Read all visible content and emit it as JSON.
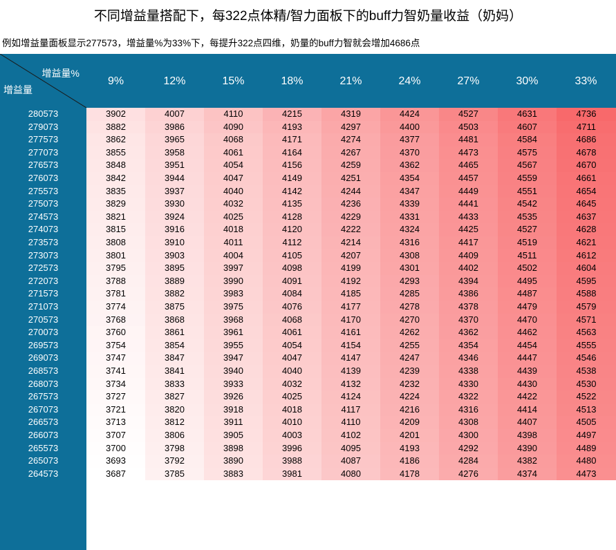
{
  "title": "不同增益量搭配下，每322点体精/智力面板下的buff力智奶量收益（奶妈）",
  "subtitle": "例如增益量面板显示277573，增益量%为33%下，每提升322点四维，奶量的buff力智就会增加4686点",
  "colors": {
    "header": "#0e6f99",
    "low": "#ffffff",
    "high": "#f8696b"
  },
  "chart_data": {
    "type": "table",
    "corner_top_label": "增益量%",
    "corner_bottom_label": "增益量",
    "columns": [
      "9%",
      "12%",
      "15%",
      "18%",
      "21%",
      "24%",
      "27%",
      "30%",
      "33%"
    ],
    "rows": [
      {
        "label": "280573",
        "values": [
          3902,
          4007,
          4110,
          4215,
          4319,
          4424,
          4527,
          4631,
          4736
        ]
      },
      {
        "label": "279073",
        "values": [
          3882,
          3986,
          4090,
          4193,
          4297,
          4400,
          4503,
          4607,
          4711
        ]
      },
      {
        "label": "277573",
        "values": [
          3862,
          3965,
          4068,
          4171,
          4274,
          4377,
          4481,
          4584,
          4686
        ]
      },
      {
        "label": "277073",
        "values": [
          3855,
          3958,
          4061,
          4164,
          4267,
          4370,
          4473,
          4575,
          4678
        ]
      },
      {
        "label": "276573",
        "values": [
          3848,
          3951,
          4054,
          4156,
          4259,
          4362,
          4465,
          4567,
          4670
        ]
      },
      {
        "label": "276073",
        "values": [
          3842,
          3944,
          4047,
          4149,
          4251,
          4354,
          4457,
          4559,
          4661
        ]
      },
      {
        "label": "275573",
        "values": [
          3835,
          3937,
          4040,
          4142,
          4244,
          4347,
          4449,
          4551,
          4654
        ]
      },
      {
        "label": "275073",
        "values": [
          3829,
          3930,
          4032,
          4135,
          4236,
          4339,
          4441,
          4542,
          4645
        ]
      },
      {
        "label": "274573",
        "values": [
          3821,
          3924,
          4025,
          4128,
          4229,
          4331,
          4433,
          4535,
          4637
        ]
      },
      {
        "label": "274073",
        "values": [
          3815,
          3916,
          4018,
          4120,
          4222,
          4324,
          4425,
          4527,
          4628
        ]
      },
      {
        "label": "273573",
        "values": [
          3808,
          3910,
          4011,
          4112,
          4214,
          4316,
          4417,
          4519,
          4621
        ]
      },
      {
        "label": "273073",
        "values": [
          3801,
          3903,
          4004,
          4105,
          4207,
          4308,
          4409,
          4511,
          4612
        ]
      },
      {
        "label": "272573",
        "values": [
          3795,
          3895,
          3997,
          4098,
          4199,
          4301,
          4402,
          4502,
          4604
        ]
      },
      {
        "label": "272073",
        "values": [
          3788,
          3889,
          3990,
          4091,
          4192,
          4293,
          4394,
          4495,
          4595
        ]
      },
      {
        "label": "271573",
        "values": [
          3781,
          3882,
          3983,
          4084,
          4185,
          4285,
          4386,
          4487,
          4588
        ]
      },
      {
        "label": "271073",
        "values": [
          3774,
          3875,
          3975,
          4076,
          4177,
          4278,
          4378,
          4479,
          4579
        ]
      },
      {
        "label": "270573",
        "values": [
          3768,
          3868,
          3968,
          4068,
          4170,
          4270,
          4370,
          4470,
          4571
        ]
      },
      {
        "label": "270073",
        "values": [
          3760,
          3861,
          3961,
          4061,
          4161,
          4262,
          4362,
          4462,
          4563
        ]
      },
      {
        "label": "269573",
        "values": [
          3754,
          3854,
          3955,
          4054,
          4154,
          4255,
          4354,
          4454,
          4555
        ]
      },
      {
        "label": "269073",
        "values": [
          3747,
          3847,
          3947,
          4047,
          4147,
          4247,
          4346,
          4447,
          4546
        ]
      },
      {
        "label": "268573",
        "values": [
          3741,
          3841,
          3940,
          4040,
          4139,
          4239,
          4338,
          4439,
          4538
        ]
      },
      {
        "label": "268073",
        "values": [
          3734,
          3833,
          3933,
          4032,
          4132,
          4232,
          4330,
          4430,
          4530
        ]
      },
      {
        "label": "267573",
        "values": [
          3727,
          3827,
          3926,
          4025,
          4124,
          4224,
          4322,
          4422,
          4522
        ]
      },
      {
        "label": "267073",
        "values": [
          3721,
          3820,
          3918,
          4018,
          4117,
          4216,
          4316,
          4414,
          4513
        ]
      },
      {
        "label": "266573",
        "values": [
          3713,
          3812,
          3911,
          4010,
          4110,
          4209,
          4308,
          4407,
          4505
        ]
      },
      {
        "label": "266073",
        "values": [
          3707,
          3806,
          3905,
          4003,
          4102,
          4201,
          4300,
          4398,
          4497
        ]
      },
      {
        "label": "265573",
        "values": [
          3700,
          3798,
          3898,
          3996,
          4095,
          4193,
          4292,
          4390,
          4489
        ]
      },
      {
        "label": "265073",
        "values": [
          3693,
          3792,
          3890,
          3988,
          4087,
          4186,
          4284,
          4382,
          4480
        ]
      },
      {
        "label": "264573",
        "values": [
          3687,
          3785,
          3883,
          3981,
          4080,
          4178,
          4276,
          4374,
          4473
        ]
      }
    ]
  }
}
